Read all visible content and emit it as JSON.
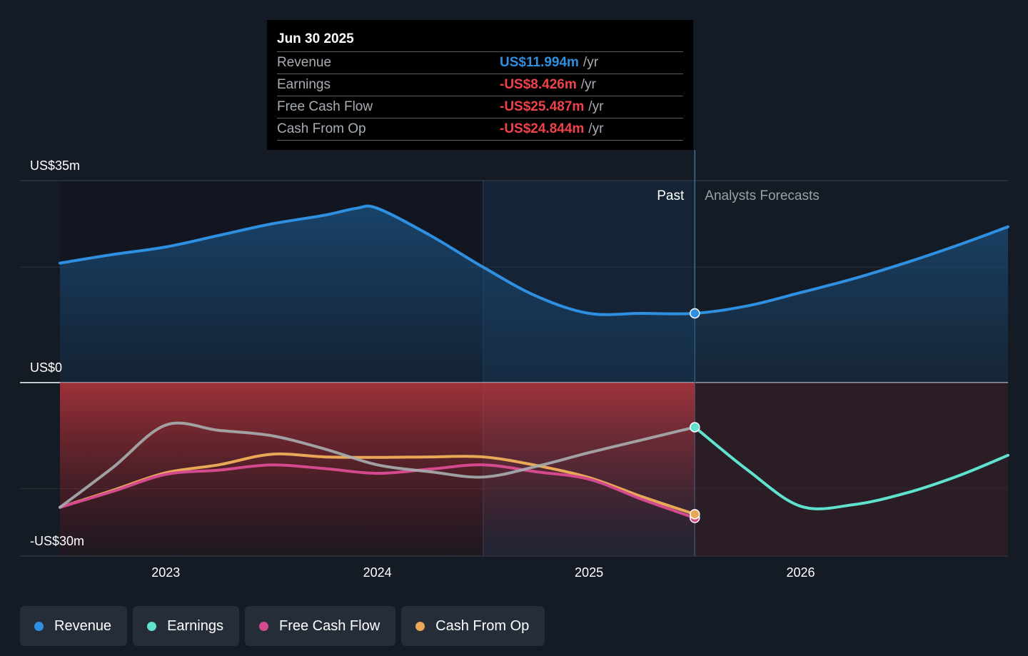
{
  "tooltip": {
    "date": "Jun 30 2025",
    "rows": [
      {
        "label": "Revenue",
        "value": "US$11.994m",
        "unit": "/yr",
        "color": "#2f8fe0"
      },
      {
        "label": "Earnings",
        "value": "-US$8.426m",
        "unit": "/yr",
        "color": "#f0424a"
      },
      {
        "label": "Free Cash Flow",
        "value": "-US$25.487m",
        "unit": "/yr",
        "color": "#f0424a"
      },
      {
        "label": "Cash From Op",
        "value": "-US$24.844m",
        "unit": "/yr",
        "color": "#f0424a"
      }
    ]
  },
  "legend": [
    {
      "label": "Revenue",
      "color": "#2f8fe0"
    },
    {
      "label": "Earnings",
      "color": "#5fe3cf"
    },
    {
      "label": "Free Cash Flow",
      "color": "#d44a8e"
    },
    {
      "label": "Cash From Op",
      "color": "#e8a857"
    }
  ],
  "chart_data": {
    "type": "line",
    "y_axis": {
      "labels": [
        "US$35m",
        "US$0",
        "-US$30m"
      ],
      "ylim": [
        -30,
        35
      ]
    },
    "x_axis": {
      "ticks": [
        "2023",
        "2024",
        "2025",
        "2026"
      ],
      "tick_values": [
        2023,
        2024,
        2025,
        2026
      ],
      "xlim": [
        2022.5,
        2026.98
      ]
    },
    "regions": {
      "past_label": "Past",
      "forecast_label": "Analysts Forecasts",
      "divider_x": 2025.5
    },
    "highlight_x": 2024.5,
    "series": [
      {
        "name": "Revenue",
        "color": "#2f8fe0",
        "x": [
          2022.5,
          2022.75,
          2023.0,
          2023.25,
          2023.5,
          2023.75,
          2023.9,
          2024.0,
          2024.25,
          2024.5,
          2024.75,
          2025.0,
          2025.25,
          2025.5,
          2025.75,
          2026.0,
          2026.25,
          2026.5,
          2026.75,
          2026.98
        ],
        "values": [
          20.7,
          22.2,
          23.5,
          25.5,
          27.5,
          29.0,
          30.2,
          30.2,
          25.5,
          20.0,
          15.0,
          12.0,
          12.0,
          12.0,
          13.3,
          15.6,
          18.0,
          20.8,
          23.9,
          27.0
        ]
      },
      {
        "name": "Earnings",
        "color": "#5fe3cf",
        "x": [
          2022.5,
          2022.75,
          2023.0,
          2023.25,
          2023.5,
          2023.75,
          2024.0,
          2024.25,
          2024.5,
          2024.75,
          2025.0,
          2025.25,
          2025.5,
          2025.75,
          2026.0,
          2026.25,
          2026.5,
          2026.75,
          2026.98
        ],
        "values": [
          -23.5,
          -16.0,
          -8.0,
          -9.0,
          -10.0,
          -12.5,
          -15.5,
          -16.8,
          -17.8,
          -15.8,
          -13.2,
          -10.8,
          -8.4,
          -16.5,
          -23.3,
          -23.0,
          -20.8,
          -17.5,
          -13.7
        ]
      },
      {
        "name": "Free Cash Flow",
        "color": "#d44a8e",
        "x": [
          2022.5,
          2022.75,
          2023.0,
          2023.25,
          2023.5,
          2023.75,
          2024.0,
          2024.25,
          2024.5,
          2024.75,
          2025.0,
          2025.25,
          2025.5
        ],
        "values": [
          -23.5,
          -20.5,
          -17.3,
          -16.5,
          -15.5,
          -16.2,
          -17.1,
          -16.3,
          -15.5,
          -16.8,
          -18.2,
          -22.0,
          -25.5
        ]
      },
      {
        "name": "Cash From Op",
        "color": "#e8a857",
        "x": [
          2022.5,
          2022.75,
          2023.0,
          2023.25,
          2023.5,
          2023.75,
          2024.0,
          2024.25,
          2024.5,
          2024.75,
          2025.0,
          2025.25,
          2025.5
        ],
        "values": [
          -23.5,
          -20.3,
          -17.0,
          -15.5,
          -13.5,
          -14.0,
          -14.1,
          -14.0,
          -14.0,
          -15.6,
          -17.9,
          -21.5,
          -24.8
        ]
      }
    ]
  }
}
